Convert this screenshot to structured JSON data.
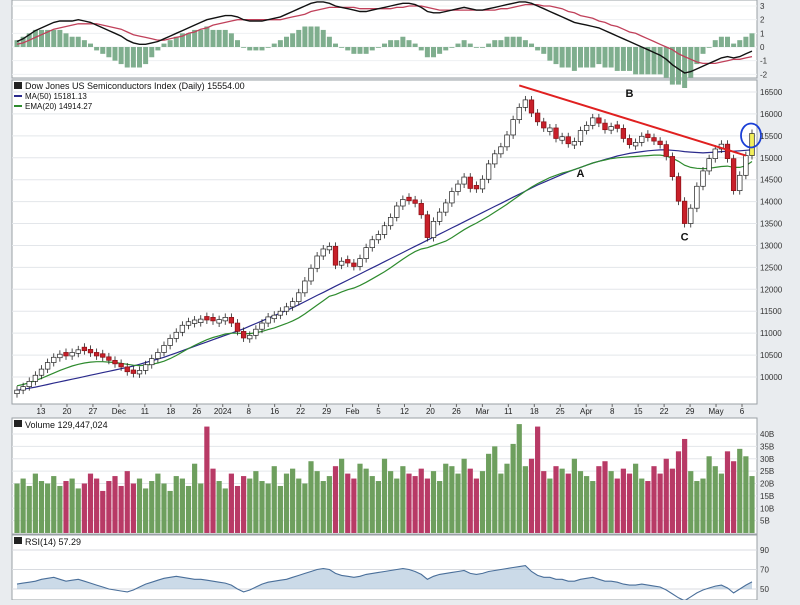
{
  "colors": {
    "up": "#e9ecef",
    "down": "#c8202a",
    "ma50": "#2a2a8c",
    "ema20": "#2e8b2e",
    "trend": "#e02020",
    "vol_up": "#6e9f5e",
    "vol_down": "#b83a66",
    "highlight": "#1a3fd6",
    "macd": "#111111",
    "signal": "#c0405a",
    "rsi": "#4a6f9a"
  },
  "main_panel": {
    "title": "Dow Jones US Semiconductors Index (Daily) 15554.00",
    "legend": [
      {
        "label": "MA(50) 15181.13",
        "color_key": "ma50"
      },
      {
        "label": "EMA(20) 14914.27",
        "color_key": "ema20"
      }
    ],
    "ylabels": [
      "16500",
      "16000",
      "15500",
      "15000",
      "14500",
      "14000",
      "13500",
      "13000",
      "12500",
      "12000",
      "11500",
      "11000",
      "10500",
      "10000"
    ],
    "annotations": [
      "A",
      "B",
      "C"
    ]
  },
  "macd_panel": {
    "ylabels": [
      "3",
      "2",
      "1",
      "0",
      "-1",
      "-2"
    ]
  },
  "volume_panel": {
    "title": "Volume 129,447,024",
    "ylabels": [
      "40B",
      "35B",
      "30B",
      "25B",
      "20B",
      "15B",
      "10B",
      "5B"
    ]
  },
  "rsi_panel": {
    "title": "RSI(14) 57.29",
    "ylabels": [
      "90",
      "70",
      "50"
    ]
  },
  "xaxis": {
    "labels": [
      "13",
      "20",
      "27",
      "Dec",
      "11",
      "18",
      "26",
      "2024",
      "8",
      "16",
      "22",
      "29",
      "Feb",
      "5",
      "12",
      "20",
      "26",
      "Mar",
      "11",
      "18",
      "25",
      "Apr",
      "8",
      "15",
      "22",
      "29",
      "May",
      "6"
    ]
  },
  "chart_data": {
    "type": "candlestick",
    "title": "Dow Jones US Semiconductors Index (Daily) 15554.00",
    "ylim": [
      9700,
      16800
    ],
    "closes": [
      9700,
      9780,
      9900,
      10040,
      10180,
      10330,
      10450,
      10520,
      10480,
      10560,
      10620,
      10600,
      10550,
      10480,
      10450,
      10380,
      10300,
      10230,
      10120,
      10080,
      10150,
      10280,
      10420,
      10560,
      10720,
      10880,
      11020,
      11180,
      11260,
      11300,
      11320,
      11300,
      11280,
      11310,
      11360,
      11230,
      11040,
      10890,
      10950,
      11090,
      11230,
      11370,
      11410,
      11500,
      11600,
      11720,
      11920,
      12190,
      12480,
      12760,
      12920,
      12980,
      12550,
      12640,
      12600,
      12520,
      12700,
      12950,
      13130,
      13250,
      13450,
      13640,
      13900,
      14050,
      14020,
      13960,
      13700,
      13180,
      13550,
      13760,
      13970,
      14230,
      14400,
      14560,
      14300,
      14290,
      14510,
      14860,
      15090,
      15250,
      15520,
      15870,
      16150,
      16320,
      16020,
      15820,
      15680,
      15680,
      15440,
      15480,
      15320,
      15370,
      15620,
      15740,
      15910,
      15790,
      15640,
      15710,
      15670,
      15440,
      15300,
      15350,
      15490,
      15460,
      15380,
      15300,
      15030,
      14570,
      14010,
      13500,
      13850,
      14350,
      14700,
      14980,
      15200,
      15310,
      14980,
      14250,
      14600,
      15050,
      15554
    ],
    "up": [
      true,
      true,
      true,
      true,
      true,
      true,
      true,
      true,
      false,
      true,
      true,
      false,
      false,
      false,
      false,
      false,
      false,
      false,
      false,
      false,
      true,
      true,
      true,
      true,
      true,
      true,
      true,
      true,
      true,
      true,
      true,
      false,
      false,
      true,
      true,
      false,
      false,
      false,
      true,
      true,
      true,
      true,
      true,
      true,
      true,
      true,
      true,
      true,
      true,
      true,
      true,
      true,
      false,
      true,
      false,
      false,
      true,
      true,
      true,
      true,
      true,
      true,
      true,
      true,
      false,
      false,
      false,
      false,
      true,
      true,
      true,
      true,
      true,
      true,
      false,
      false,
      true,
      true,
      true,
      true,
      true,
      true,
      true,
      true,
      false,
      false,
      false,
      true,
      false,
      true,
      false,
      true,
      true,
      true,
      true,
      false,
      false,
      true,
      false,
      false,
      false,
      true,
      true,
      false,
      false,
      false,
      false,
      false,
      false,
      false,
      true,
      true,
      true,
      true,
      true,
      true,
      false,
      false,
      true,
      true,
      true
    ],
    "ma50": [
      9700,
      9720,
      9745,
      9770,
      9800,
      9830,
      9860,
      9890,
      9920,
      9950,
      9980,
      10010,
      10040,
      10070,
      10100,
      10130,
      10160,
      10190,
      10220,
      10250,
      10290,
      10330,
      10370,
      10410,
      10450,
      10500,
      10550,
      10600,
      10650,
      10700,
      10750,
      10800,
      10850,
      10900,
      10950,
      11000,
      11050,
      11100,
      11160,
      11220,
      11280,
      11340,
      11400,
      11460,
      11520,
      11580,
      11650,
      11720,
      11790,
      11860,
      11930,
      12000,
      12070,
      12140,
      12210,
      12280,
      12350,
      12420,
      12490,
      12560,
      12630,
      12700,
      12770,
      12840,
      12910,
      12980,
      13050,
      13120,
      13190,
      13260,
      13330,
      13400,
      13470,
      13540,
      13610,
      13680,
      13750,
      13820,
      13890,
      13960,
      14030,
      14100,
      14170,
      14240,
      14310,
      14380,
      14440,
      14500,
      14560,
      14620,
      14680,
      14730,
      14780,
      14830,
      14880,
      14920,
      14960,
      15000,
      15040,
      15070,
      15100,
      15120,
      15140,
      15160,
      15170,
      15180,
      15180,
      15170,
      15160,
      15140,
      15130,
      15120,
      15110,
      15120,
      15130,
      15140,
      15150,
      15150,
      15160,
      15170,
      15181
    ],
    "ema20": [
      9800,
      9830,
      9870,
      9920,
      9970,
      10030,
      10090,
      10150,
      10200,
      10250,
      10290,
      10320,
      10340,
      10350,
      10350,
      10340,
      10330,
      10310,
      10290,
      10270,
      10260,
      10270,
      10290,
      10320,
      10360,
      10420,
      10490,
      10570,
      10650,
      10720,
      10790,
      10850,
      10900,
      10940,
      10980,
      11000,
      11000,
      10990,
      10990,
      11010,
      11040,
      11080,
      11120,
      11170,
      11220,
      11280,
      11350,
      11440,
      11540,
      11640,
      11740,
      11840,
      11880,
      11940,
      11990,
      12030,
      12090,
      12160,
      12240,
      12320,
      12400,
      12490,
      12590,
      12690,
      12780,
      12860,
      12920,
      12950,
      13000,
      13050,
      13100,
      13180,
      13270,
      13360,
      13440,
      13510,
      13590,
      13670,
      13760,
      13850,
      13940,
      14040,
      14140,
      14240,
      14330,
      14410,
      14480,
      14550,
      14600,
      14650,
      14690,
      14730,
      14780,
      14830,
      14880,
      14920,
      14950,
      14980,
      15000,
      15010,
      15020,
      15030,
      15040,
      15050,
      15060,
      15060,
      15040,
      14990,
      14920,
      14830,
      14780,
      14760,
      14750,
      14760,
      14780,
      14800,
      14810,
      14780,
      14780,
      14820,
      14914
    ],
    "trendline": [
      {
        "i": 82,
        "y": 16650
      },
      {
        "i": 119,
        "y": 15050
      }
    ],
    "points": [
      {
        "label": "A",
        "i": 92,
        "y": 14650
      },
      {
        "label": "B",
        "i": 100,
        "y": 16480
      },
      {
        "label": "C",
        "i": 109,
        "y": 13200
      }
    ],
    "volume_ylim": [
      0,
      45
    ],
    "volume": [
      20,
      22,
      19,
      24,
      21,
      20,
      23,
      19,
      21,
      22,
      18,
      20,
      24,
      22,
      17,
      21,
      23,
      19,
      25,
      20,
      22,
      18,
      21,
      24,
      20,
      17,
      23,
      22,
      19,
      28,
      20,
      43,
      26,
      21,
      18,
      24,
      19,
      23,
      22,
      25,
      21,
      20,
      27,
      19,
      24,
      26,
      22,
      20,
      29,
      25,
      21,
      23,
      27,
      30,
      24,
      22,
      28,
      26,
      23,
      21,
      30,
      25,
      22,
      27,
      24,
      23,
      26,
      22,
      25,
      21,
      28,
      27,
      24,
      30,
      26,
      22,
      25,
      32,
      35,
      24,
      28,
      36,
      44,
      27,
      30,
      43,
      25,
      22,
      27,
      26,
      24,
      30,
      25,
      23,
      21,
      27,
      29,
      25,
      22,
      26,
      24,
      28,
      22,
      21,
      27,
      24,
      30,
      26,
      33,
      38,
      25,
      21,
      22,
      31,
      27,
      24,
      33,
      29,
      34,
      31,
      23
    ],
    "rsi_ylim": [
      30,
      100
    ],
    "rsi": [
      55,
      56,
      57,
      58,
      60,
      61,
      62,
      60,
      58,
      59,
      60,
      58,
      56,
      54,
      52,
      50,
      49,
      48,
      47,
      49,
      52,
      55,
      57,
      59,
      61,
      62,
      63,
      62,
      61,
      60,
      60,
      59,
      58,
      57,
      56,
      54,
      50,
      47,
      49,
      52,
      55,
      57,
      58,
      59,
      60,
      62,
      64,
      66,
      68,
      70,
      71,
      70,
      66,
      64,
      63,
      62,
      63,
      65,
      66,
      67,
      68,
      69,
      70,
      71,
      70,
      68,
      65,
      60,
      63,
      65,
      66,
      67,
      68,
      69,
      66,
      65,
      66,
      68,
      69,
      70,
      71,
      72,
      73,
      74,
      68,
      64,
      62,
      62,
      60,
      60,
      58,
      58,
      60,
      61,
      62,
      60,
      58,
      58,
      57,
      55,
      54,
      54,
      55,
      54,
      53,
      52,
      49,
      45,
      41,
      38,
      42,
      46,
      49,
      51,
      53,
      54,
      51,
      46,
      50,
      54,
      57.29
    ],
    "macd_ylim": [
      -2.3,
      3.3
    ],
    "macd": [
      0.4,
      0.6,
      0.9,
      1.2,
      1.4,
      1.6,
      1.8,
      1.9,
      1.9,
      1.9,
      2.0,
      1.9,
      1.8,
      1.6,
      1.4,
      1.2,
      1.0,
      0.8,
      0.5,
      0.3,
      0.2,
      0.2,
      0.3,
      0.4,
      0.6,
      0.8,
      1.0,
      1.2,
      1.4,
      1.6,
      1.8,
      2.0,
      2.1,
      2.2,
      2.3,
      2.3,
      2.2,
      2.0,
      1.9,
      1.9,
      1.9,
      2.0,
      2.1,
      2.2,
      2.4,
      2.6,
      2.8,
      3.0,
      3.2,
      3.3,
      3.3,
      3.2,
      3.0,
      2.9,
      2.8,
      2.7,
      2.6,
      2.6,
      2.7,
      2.8,
      2.9,
      3.0,
      3.1,
      3.2,
      3.2,
      3.1,
      2.9,
      2.6,
      2.5,
      2.5,
      2.6,
      2.7,
      2.8,
      2.9,
      2.8,
      2.7,
      2.7,
      2.8,
      2.9,
      3.0,
      3.1,
      3.2,
      3.3,
      3.3,
      3.2,
      3.0,
      2.8,
      2.6,
      2.4,
      2.2,
      2.0,
      1.8,
      1.7,
      1.6,
      1.5,
      1.4,
      1.2,
      1.0,
      0.8,
      0.6,
      0.4,
      0.2,
      0.0,
      -0.2,
      -0.4,
      -0.6,
      -0.9,
      -1.3,
      -1.6,
      -1.9,
      -1.8,
      -1.6,
      -1.4,
      -1.2,
      -1.0,
      -0.8,
      -0.7,
      -0.8,
      -0.7,
      -0.5,
      -0.3
    ],
    "signal": [
      0.2,
      0.3,
      0.5,
      0.7,
      0.9,
      1.1,
      1.3,
      1.4,
      1.5,
      1.6,
      1.7,
      1.7,
      1.7,
      1.7,
      1.6,
      1.5,
      1.4,
      1.3,
      1.1,
      0.9,
      0.8,
      0.7,
      0.6,
      0.5,
      0.5,
      0.6,
      0.7,
      0.8,
      1.0,
      1.1,
      1.3,
      1.4,
      1.6,
      1.7,
      1.8,
      1.9,
      2.0,
      2.0,
      2.0,
      2.0,
      2.0,
      2.0,
      2.0,
      2.0,
      2.1,
      2.2,
      2.3,
      2.4,
      2.6,
      2.7,
      2.8,
      2.9,
      2.9,
      2.9,
      2.9,
      2.9,
      2.8,
      2.8,
      2.8,
      2.8,
      2.8,
      2.8,
      2.9,
      2.9,
      3.0,
      3.0,
      3.0,
      2.9,
      2.8,
      2.7,
      2.7,
      2.7,
      2.7,
      2.7,
      2.7,
      2.7,
      2.7,
      2.7,
      2.7,
      2.8,
      2.8,
      2.9,
      3.0,
      3.1,
      3.1,
      3.1,
      3.0,
      3.0,
      2.9,
      2.8,
      2.6,
      2.5,
      2.3,
      2.2,
      2.1,
      1.9,
      1.8,
      1.6,
      1.5,
      1.3,
      1.1,
      1.0,
      0.8,
      0.6,
      0.4,
      0.2,
      0.0,
      -0.2,
      -0.5,
      -0.7,
      -0.9,
      -1.1,
      -1.2,
      -1.2,
      -1.2,
      -1.1,
      -1.0,
      -0.9,
      -0.9,
      -0.8,
      -0.7
    ]
  }
}
